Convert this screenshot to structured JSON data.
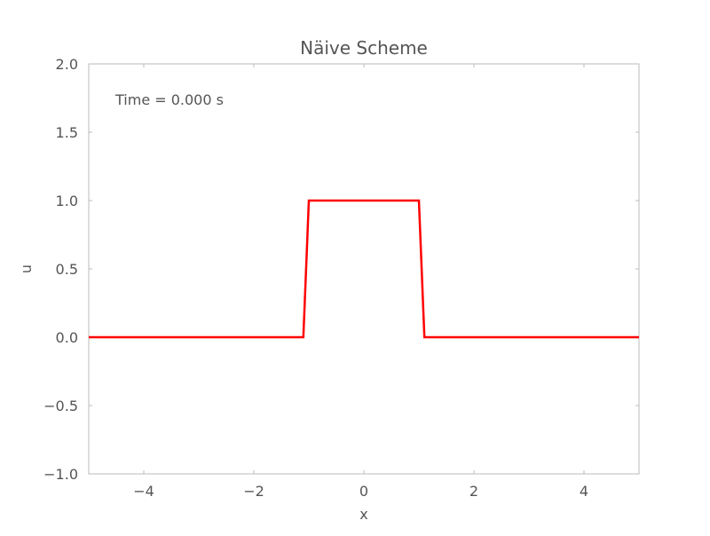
{
  "chart_data": {
    "type": "line",
    "title": "Näive Scheme",
    "xlabel": "x",
    "ylabel": "u",
    "annotation": "Time = 0.000 s",
    "xlim": [
      -5,
      5
    ],
    "ylim": [
      -1,
      2
    ],
    "xticks": [
      -4,
      -2,
      0,
      2,
      4
    ],
    "xtick_labels": [
      "−4",
      "−2",
      "0",
      "2",
      "4"
    ],
    "yticks": [
      -1,
      -0.5,
      0,
      0.5,
      1,
      1.5,
      2
    ],
    "ytick_labels": [
      "−1.0",
      "−0.5",
      "0.0",
      "0.5",
      "1.0",
      "1.5",
      "2.0"
    ],
    "grid": false,
    "series": [
      {
        "color": "#ff0000",
        "x": [
          -5,
          -1.1,
          -1.0,
          1.0,
          1.1,
          5
        ],
        "y": [
          0,
          0,
          1,
          1,
          0,
          0
        ]
      }
    ],
    "colors": {
      "axis": "#bbbbbb",
      "text": "#555555"
    }
  }
}
